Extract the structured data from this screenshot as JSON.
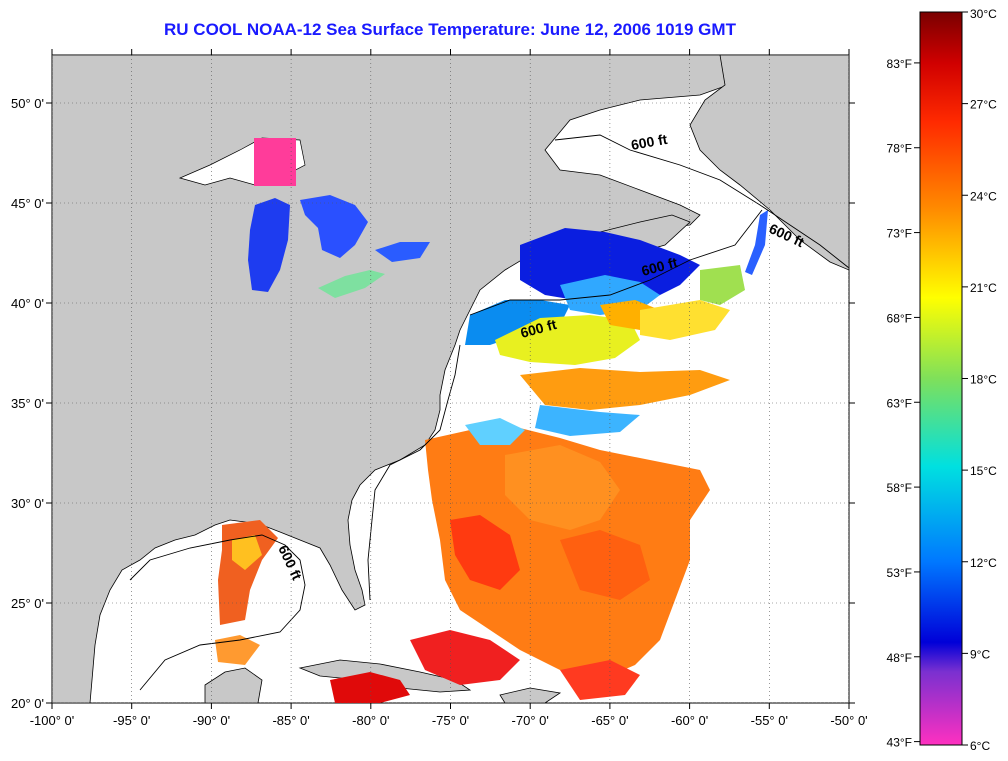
{
  "title": "RU COOL  NOAA-12  Sea Surface Temperature:  June 12, 2006 1019 GMT",
  "map": {
    "lon_range": [
      -100,
      -50
    ],
    "lat_range": [
      20,
      52.4
    ],
    "lon_ticks": [
      "-100° 0'",
      "-95° 0'",
      "-90° 0'",
      "-85° 0'",
      "-80° 0'",
      "-75° 0'",
      "-70° 0'",
      "-65° 0'",
      "-60° 0'",
      "-55° 0'",
      "-50° 0'"
    ],
    "lat_ticks": [
      "20° 0'",
      "25° 0'",
      "30° 0'",
      "35° 0'",
      "40° 0'",
      "45° 0'",
      "50° 0'"
    ],
    "lon_values": [
      -100,
      -95,
      -90,
      -85,
      -80,
      -75,
      -70,
      -65,
      -60,
      -55,
      -50
    ],
    "lat_values": [
      20,
      25,
      30,
      35,
      40,
      45,
      50
    ],
    "grid": true,
    "land_color": "#c8c8c8",
    "cloud_color": "#ffffff",
    "isobath_labels": [
      "600 ft",
      "600 ft",
      "600 ft",
      "600 ft",
      "600 ft"
    ]
  },
  "colorbar": {
    "celsius_labels": [
      "30°C",
      "27°C",
      "24°C",
      "21°C",
      "18°C",
      "15°C",
      "12°C",
      "9°C",
      "6°C"
    ],
    "fahrenheit_labels": [
      "83°F",
      "78°F",
      "73°F",
      "68°F",
      "63°F",
      "58°F",
      "53°F",
      "48°F",
      "43°F"
    ],
    "range_c": [
      6,
      30
    ]
  }
}
